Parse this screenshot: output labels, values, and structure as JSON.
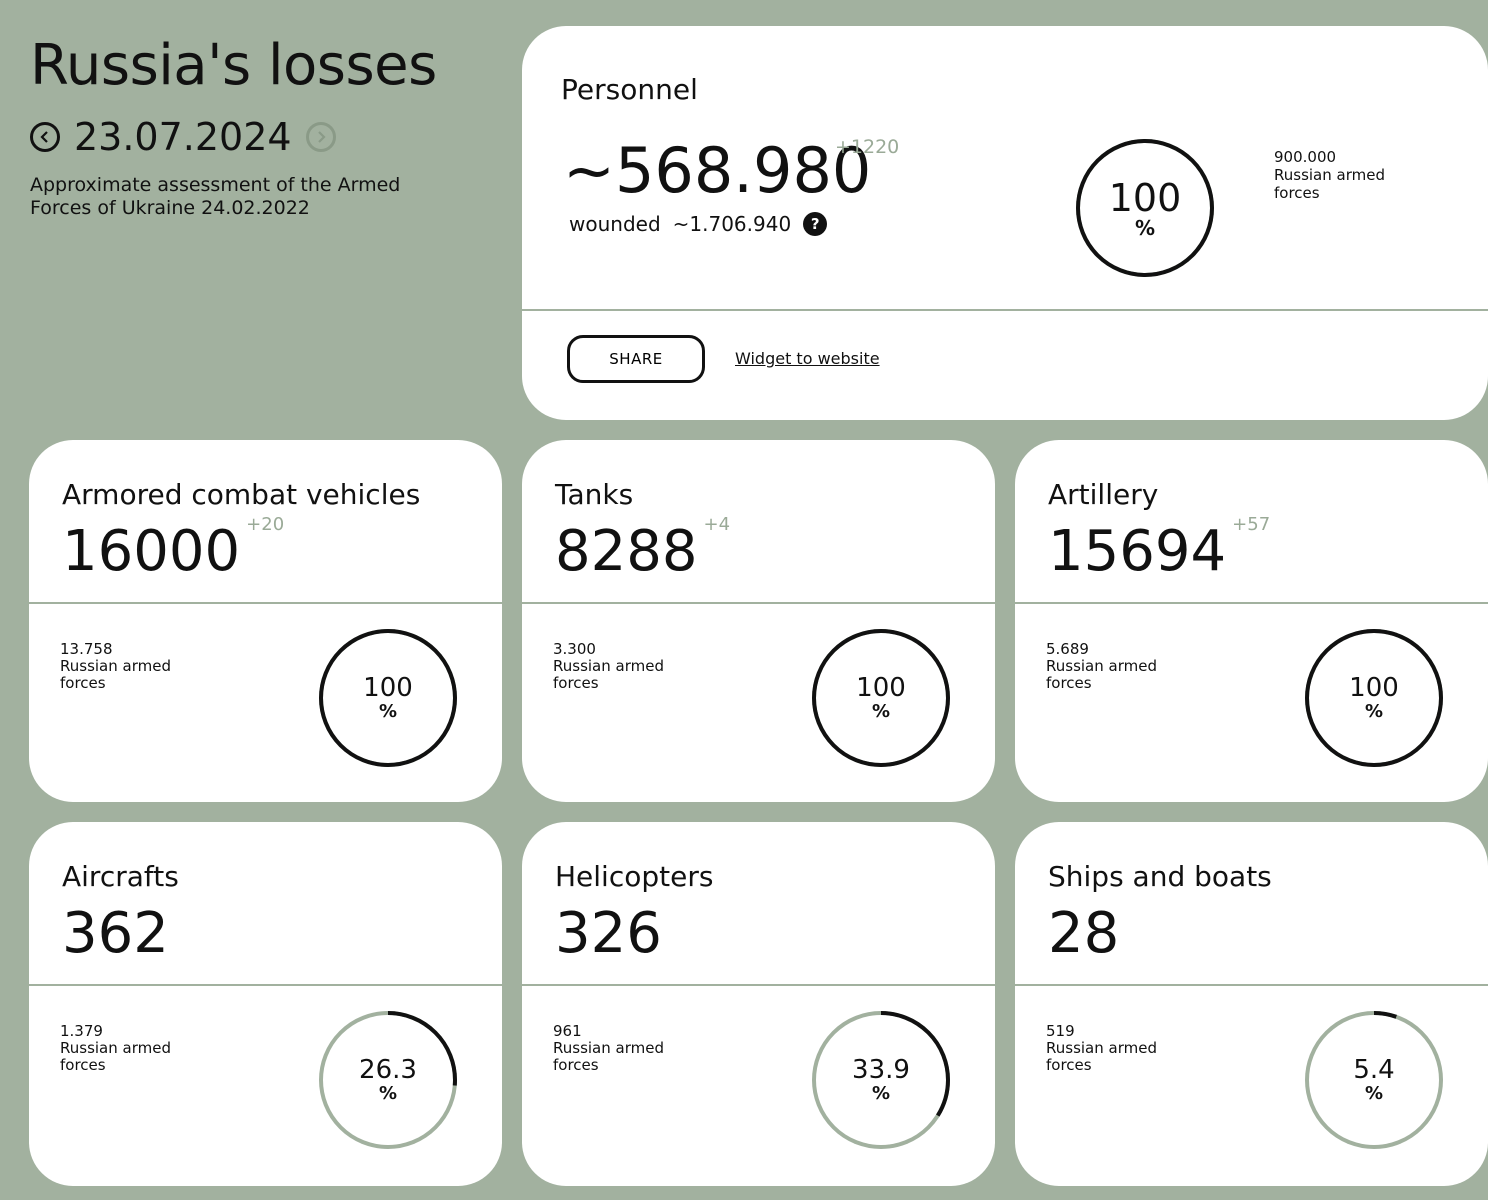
{
  "header": {
    "title": "Russia's losses",
    "date": "23.07.2024",
    "subtitle": "Approximate assessment of the Armed Forces of Ukraine 24.02.2022"
  },
  "personnel": {
    "title": "Personnel",
    "value": "~568.980",
    "delta": "+1220",
    "wounded_label": "wounded",
    "wounded_value": "~1.706.940",
    "help": "?",
    "percent": "100",
    "percent_value": 100,
    "percent_sign": "%",
    "force_total": "900.000",
    "force_label": "Russian armed forces",
    "share_label": "SHARE",
    "widget_label": "Widget to website"
  },
  "cards": [
    {
      "title": "Armored combat vehicles",
      "value": "16000",
      "delta": "+20",
      "force_total": "13.758",
      "force_label": "Russian armed forces",
      "percent": "100",
      "percent_value": 100,
      "percent_sign": "%"
    },
    {
      "title": "Tanks",
      "value": "8288",
      "delta": "+4",
      "force_total": "3.300",
      "force_label": "Russian armed forces",
      "percent": "100",
      "percent_value": 100,
      "percent_sign": "%"
    },
    {
      "title": "Artillery",
      "value": "15694",
      "delta": "+57",
      "force_total": "5.689",
      "force_label": "Russian armed forces",
      "percent": "100",
      "percent_value": 100,
      "percent_sign": "%"
    },
    {
      "title": "Aircrafts",
      "value": "362",
      "delta": "",
      "force_total": "1.379",
      "force_label": "Russian armed forces",
      "percent": "26.3",
      "percent_value": 26.3,
      "percent_sign": "%"
    },
    {
      "title": "Helicopters",
      "value": "326",
      "delta": "",
      "force_total": "961",
      "force_label": "Russian armed forces",
      "percent": "33.9",
      "percent_value": 33.9,
      "percent_sign": "%"
    },
    {
      "title": "Ships and boats",
      "value": "28",
      "delta": "",
      "force_total": "519",
      "force_label": "Russian armed forces",
      "percent": "5.4",
      "percent_value": 5.4,
      "percent_sign": "%"
    }
  ],
  "colors": {
    "background": "#a2b19f",
    "ring_track": "#a2b19f",
    "ring_fill": "#111111",
    "delta": "#9aaa97"
  }
}
